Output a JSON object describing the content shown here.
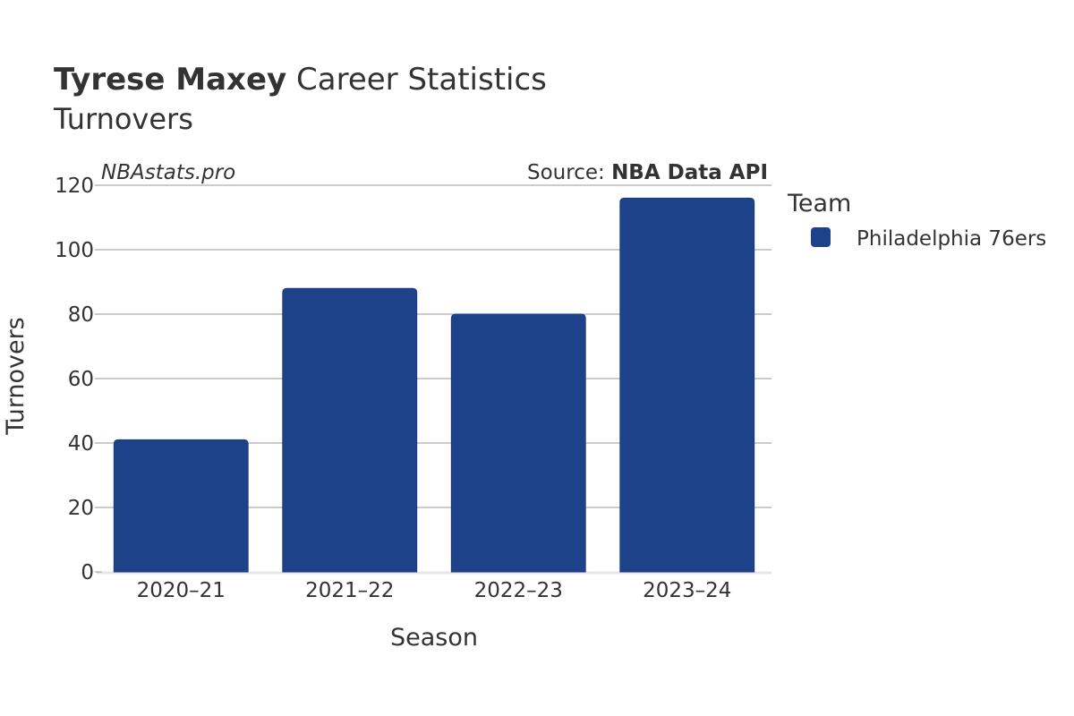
{
  "header": {
    "title_bold": "Tyrese Maxey",
    "title_rest": "Career Statistics",
    "subtitle": "Turnovers"
  },
  "credits": {
    "site": "NBAstats.pro",
    "source_prefix": "Source: ",
    "source_name": "NBA Data API"
  },
  "legend": {
    "title": "Team",
    "items": [
      {
        "label": "Philadelphia 76ers",
        "color": "#1d428a"
      }
    ]
  },
  "chart_data": {
    "type": "bar",
    "categories": [
      "2020–21",
      "2021–22",
      "2022–23",
      "2023–24"
    ],
    "series": [
      {
        "name": "Philadelphia 76ers",
        "values": [
          41,
          88,
          80,
          116
        ],
        "color": "#1d428a"
      }
    ],
    "xlabel": "Season",
    "ylabel": "Turnovers",
    "ylim": [
      0,
      120
    ],
    "yticks": [
      0,
      20,
      40,
      60,
      80,
      100,
      120
    ],
    "grid": true,
    "legend_position": "right"
  }
}
